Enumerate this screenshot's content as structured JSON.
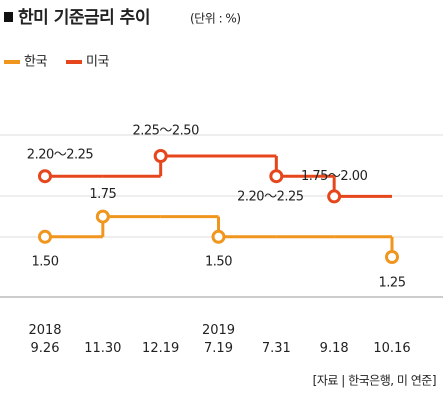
{
  "chart_data": {
    "type": "step-line",
    "title": "한미 기준금리 추이",
    "subtitle": "(단위 : %)",
    "categories": [
      "2018\n9.26",
      "11.30",
      "12.19",
      "2019\n7.19",
      "7.31",
      "9.18",
      "10.16"
    ],
    "series": [
      {
        "name": "한국",
        "color": "#f0961e",
        "values": [
          1.5,
          1.75,
          1.75,
          1.5,
          1.5,
          1.5,
          1.25
        ],
        "value_labels": [
          "1.50",
          "1.75",
          null,
          "1.50",
          null,
          null,
          "1.25"
        ]
      },
      {
        "name": "미국",
        "color": "#e5461c",
        "values": [
          2.25,
          2.25,
          2.5,
          2.5,
          2.25,
          2.0,
          2.0
        ],
        "value_labels": [
          "2.20～2.25",
          null,
          "2.25～2.50",
          null,
          "2.20～2.25",
          "1.75～2.00",
          null
        ]
      }
    ],
    "source": "[자료 | 한국은행, 미 연준]"
  }
}
